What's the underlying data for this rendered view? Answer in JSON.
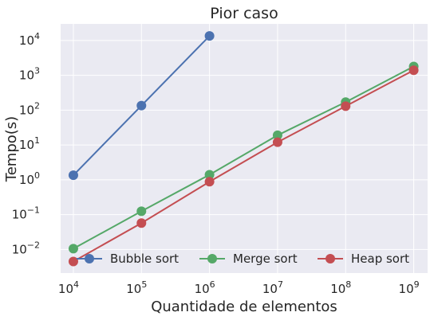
{
  "chart_data": {
    "type": "line",
    "title": "Pior caso",
    "xlabel": "Quantidade de elementos",
    "ylabel": "Tempo(s)",
    "xscale": "log",
    "yscale": "log",
    "xlim": [
      6500,
      1600000000
    ],
    "ylim": [
      0.0021,
      30000
    ],
    "x_ticks": [
      {
        "value": 10000,
        "base": "10",
        "exp": "4"
      },
      {
        "value": 100000,
        "base": "10",
        "exp": "5"
      },
      {
        "value": 1000000,
        "base": "10",
        "exp": "6"
      },
      {
        "value": 10000000,
        "base": "10",
        "exp": "7"
      },
      {
        "value": 100000000,
        "base": "10",
        "exp": "8"
      },
      {
        "value": 1000000000,
        "base": "10",
        "exp": "9"
      }
    ],
    "y_ticks": [
      {
        "value": 0.01,
        "base": "10",
        "exp": "−2"
      },
      {
        "value": 0.1,
        "base": "10",
        "exp": "−1"
      },
      {
        "value": 1,
        "base": "10",
        "exp": "0"
      },
      {
        "value": 10,
        "base": "10",
        "exp": "1"
      },
      {
        "value": 100,
        "base": "10",
        "exp": "2"
      },
      {
        "value": 1000,
        "base": "10",
        "exp": "3"
      },
      {
        "value": 10000,
        "base": "10",
        "exp": "4"
      }
    ],
    "grid": true,
    "legend_position": "bottom",
    "series": [
      {
        "name": "Bubble sort",
        "color": "#4c72b0",
        "x": [
          10000,
          100000,
          1000000
        ],
        "y": [
          1.35,
          135,
          13500
        ]
      },
      {
        "name": "Merge sort",
        "color": "#55a868",
        "x": [
          10000,
          100000,
          1000000,
          10000000,
          100000000,
          1000000000
        ],
        "y": [
          0.0105,
          0.125,
          1.4,
          19,
          170,
          1800
        ]
      },
      {
        "name": "Heap sort",
        "color": "#c44e52",
        "x": [
          10000,
          100000,
          1000000,
          10000000,
          100000000,
          1000000000
        ],
        "y": [
          0.0045,
          0.057,
          0.88,
          12,
          130,
          1400
        ]
      }
    ]
  }
}
